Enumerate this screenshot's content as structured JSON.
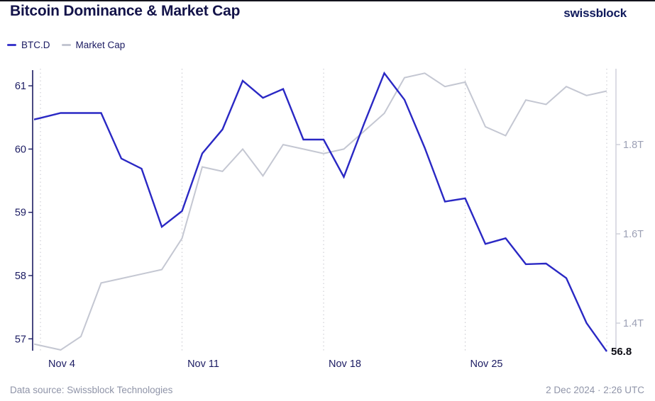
{
  "header": {
    "title": "Bitcoin Dominance & Market Cap",
    "logo": "swissblock"
  },
  "legend": {
    "items": [
      {
        "label": "BTC.D",
        "color": "#3c38cb"
      },
      {
        "label": "Market Cap",
        "color": "#c3c6d1"
      }
    ]
  },
  "chart_data": {
    "type": "line",
    "x": [
      "Nov 3",
      "Nov 4",
      "Nov 5",
      "Nov 6",
      "Nov 7",
      "Nov 8",
      "Nov 9",
      "Nov 10",
      "Nov 11",
      "Nov 12",
      "Nov 13",
      "Nov 14",
      "Nov 15",
      "Nov 16",
      "Nov 17",
      "Nov 18",
      "Nov 19",
      "Nov 20",
      "Nov 21",
      "Nov 22",
      "Nov 23",
      "Nov 24",
      "Nov 25",
      "Nov 26",
      "Nov 27",
      "Nov 28",
      "Nov 29",
      "Nov 30",
      "Dec 1",
      "Dec 2"
    ],
    "series": [
      {
        "name": "BTC.D",
        "axis": "left",
        "color": "#2a28c4",
        "width": 2.4,
        "values": [
          60.42,
          60.49,
          60.57,
          60.57,
          60.57,
          59.85,
          59.69,
          58.77,
          59.02,
          59.93,
          60.31,
          61.08,
          60.81,
          60.95,
          60.15,
          60.15,
          59.56,
          60.4,
          61.2,
          60.78,
          60.02,
          59.17,
          59.22,
          58.5,
          58.59,
          58.18,
          58.19,
          57.96,
          57.25,
          56.8
        ]
      },
      {
        "name": "Market Cap",
        "axis": "right",
        "color": "#c4c7d2",
        "width": 2,
        "values": [
          1.36,
          1.35,
          1.34,
          1.37,
          1.49,
          1.5,
          1.51,
          1.52,
          1.59,
          1.75,
          1.74,
          1.79,
          1.73,
          1.8,
          1.79,
          1.78,
          1.79,
          1.83,
          1.87,
          1.95,
          1.96,
          1.93,
          1.94,
          1.84,
          1.82,
          1.9,
          1.89,
          1.93,
          1.91,
          1.92
        ]
      }
    ],
    "left_axis": {
      "ticks": [
        57,
        58,
        59,
        60,
        61
      ],
      "range": [
        56.79,
        61.27
      ],
      "line_color": "#1b1b62",
      "label_color": "#1b1b62"
    },
    "right_axis": {
      "ticks": [
        "1.4T",
        "1.6T",
        "1.8T"
      ],
      "tick_values": [
        1.4,
        1.6,
        1.8
      ],
      "range": [
        1.335,
        1.97
      ],
      "line_color": "#ccced8",
      "label_color": "#9ca0b5"
    },
    "x_ticks": [
      {
        "label": "Nov 4",
        "index": 1
      },
      {
        "label": "Nov 11",
        "index": 8
      },
      {
        "label": "Nov 18",
        "index": 15
      },
      {
        "label": "Nov 25",
        "index": 22
      },
      {
        "label": "",
        "index": 29
      }
    ],
    "x_label_color": "#1b1b62",
    "grid": "vertical-dotted",
    "grid_color": "#c6c6cc",
    "legend_position": "top-left",
    "end_label": "56.8",
    "end_label_color": "#0c0c14"
  },
  "footer": {
    "source": "Data source: Swissblock Technologies",
    "timestamp": "2 Dec 2024 · 2:26 UTC"
  }
}
